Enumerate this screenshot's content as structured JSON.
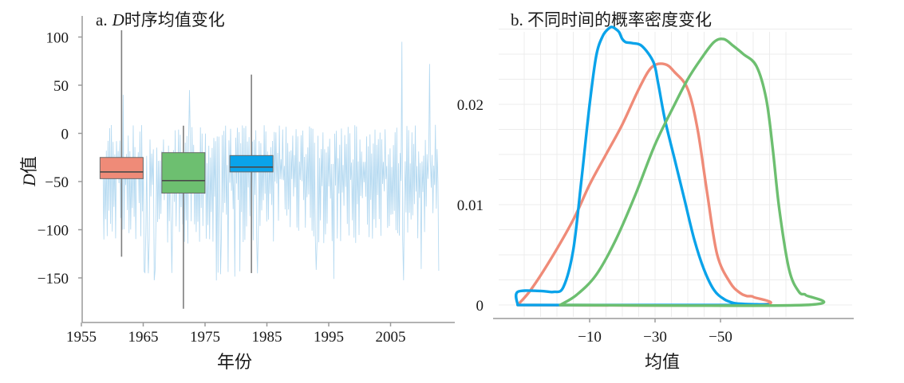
{
  "chart_data": [
    {
      "type": "boxplot",
      "title_prefix": "a.",
      "title_italic": "D",
      "title_rest": "时序均值变化",
      "xlabel": "年份",
      "ylabel_italic": "D",
      "ylabel_rest": "值",
      "xlim": [
        1955,
        2013
      ],
      "ylim": [
        -185,
        110
      ],
      "xticks": [
        1955,
        1965,
        1975,
        1985,
        1995,
        2005
      ],
      "xtick_labels": [
        "1955",
        "1965",
        "1975",
        "1985",
        "1995",
        "2005"
      ],
      "yticks": [
        100,
        50,
        0,
        -50,
        -100,
        -150
      ],
      "ytick_labels": [
        "100",
        "50",
        "0",
        "-50",
        "-100",
        "-150"
      ],
      "background_series": {
        "color": "#a9d3ef",
        "x_start": 1958.5,
        "x_end": 2012.8,
        "points": 400,
        "typical_range": [
          -140,
          10
        ],
        "peaks": [
          {
            "x": 1961.8,
            "y": 40
          },
          {
            "x": 1972.5,
            "y": 45
          },
          {
            "x": 2006.8,
            "y": 95
          },
          {
            "x": 2011.3,
            "y": 72
          }
        ]
      },
      "boxes": [
        {
          "x": 1961.5,
          "whisker_low": -128,
          "q1": -47,
          "median": -40,
          "q3": -25,
          "whisker_high": 107,
          "color": "#ef8b78"
        },
        {
          "x": 1971.5,
          "whisker_low": -182,
          "q1": -62,
          "median": -49,
          "q3": -20,
          "whisker_high": 8,
          "color": "#6dbf70"
        },
        {
          "x": 1982.5,
          "whisker_low": -145,
          "q1": -40,
          "median": -35,
          "q3": -23,
          "whisker_high": 61,
          "color": "#0aa3ea"
        }
      ]
    },
    {
      "type": "line",
      "title": "b. 不同时间的概率密度变化",
      "xlabel": "均值",
      "xlim": [
        12,
        -76
      ],
      "ylim": [
        -0.001,
        0.0275
      ],
      "xticks": [
        -10,
        -30,
        -50
      ],
      "xtick_labels": [
        "-10",
        "-30",
        "-50"
      ],
      "yticks": [
        0,
        0.01,
        0.02
      ],
      "ytick_labels": [
        "0",
        "0.01",
        "0.02"
      ],
      "grid": true,
      "series": [
        {
          "color": "#ef8b78",
          "x": [
            12,
            8,
            2,
            -5,
            -10,
            -15,
            -20,
            -25,
            -29,
            -33,
            -36,
            -40,
            -43,
            -46,
            -49,
            -53,
            -56,
            -58,
            -60,
            -60,
            12
          ],
          "y": [
            0,
            0.0015,
            0.0045,
            0.0085,
            0.012,
            0.015,
            0.018,
            0.0215,
            0.0237,
            0.024,
            0.0232,
            0.0215,
            0.0175,
            0.011,
            0.005,
            0.0022,
            0.0012,
            0.0009,
            0.0008,
            0,
            0
          ]
        },
        {
          "color": "#0aa3ea",
          "x": [
            12,
            12,
            5,
            1,
            -2,
            -5,
            -7.5,
            -10,
            -12,
            -14,
            -16,
            -17,
            -18,
            -19,
            -20,
            -21,
            -23,
            -26,
            -29.5,
            -31,
            -33,
            -36,
            -39,
            -42,
            -45,
            -48,
            -51,
            -54,
            -57,
            -60,
            12
          ],
          "y": [
            0,
            0.0013,
            0.0014,
            0.0013,
            0.0018,
            0.0055,
            0.0125,
            0.02,
            0.0248,
            0.0268,
            0.0276,
            0.0277,
            0.0275,
            0.0272,
            0.0265,
            0.0262,
            0.0261,
            0.0258,
            0.0242,
            0.022,
            0.0185,
            0.0145,
            0.0105,
            0.0065,
            0.0035,
            0.0015,
            0.0006,
            0.0002,
            0.0001,
            0,
            0
          ]
        },
        {
          "color": "#6dbf70",
          "x": [
            -1,
            -6,
            -12,
            -18,
            -24,
            -30,
            -36,
            -40,
            -44,
            -48,
            -51,
            -54,
            -57,
            -61,
            -64,
            -66,
            -68,
            -71,
            -74,
            -76,
            -76,
            -1
          ],
          "y": [
            0,
            0.001,
            0.003,
            0.0065,
            0.011,
            0.016,
            0.02,
            0.0225,
            0.0245,
            0.0262,
            0.0265,
            0.0258,
            0.025,
            0.0238,
            0.0205,
            0.0155,
            0.0095,
            0.0035,
            0.0013,
            0.001,
            0,
            0
          ]
        }
      ]
    }
  ]
}
